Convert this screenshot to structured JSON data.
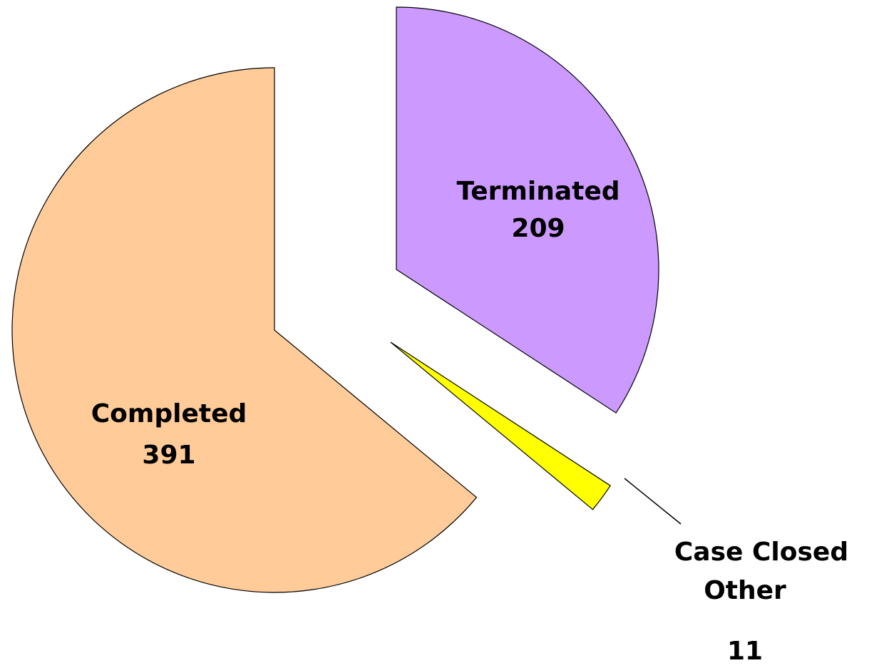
{
  "chart_data": {
    "type": "pie",
    "categories": [
      "Terminated",
      "Case Closed Other",
      "Completed"
    ],
    "values": [
      209,
      11,
      391
    ],
    "colors": [
      "#CC99FF",
      "#FFFF00",
      "#FFCC99"
    ]
  }
}
